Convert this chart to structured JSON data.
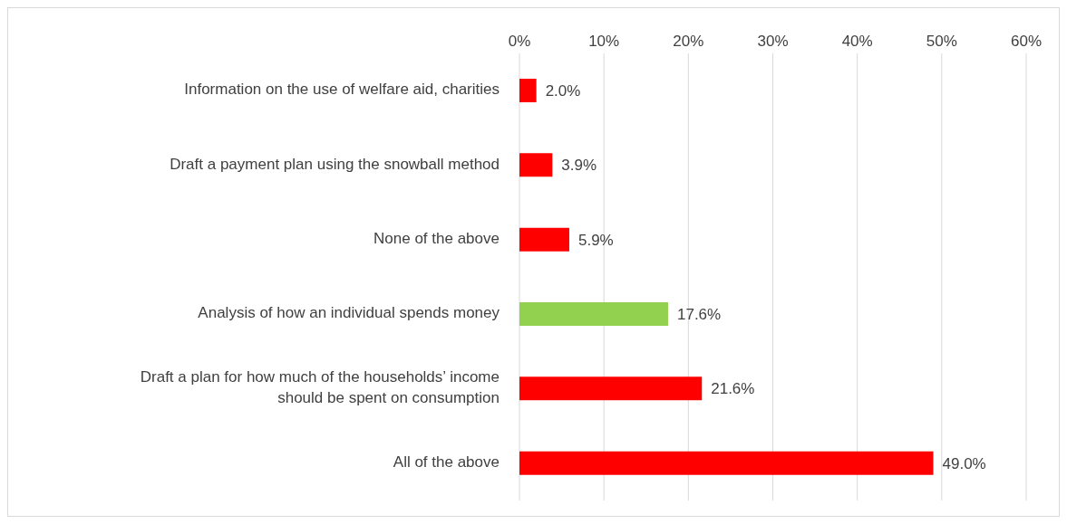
{
  "chart_data": {
    "type": "bar",
    "orientation": "horizontal",
    "categories": [
      "Information on the use of welfare aid, charities",
      "Draft a payment plan using the snowball method",
      "None of the above",
      "Analysis of how an individual spends money",
      "Draft a plan for how much of the households’ income should be spent on consumption",
      "All of the above"
    ],
    "values": [
      2.0,
      3.9,
      5.9,
      17.6,
      21.6,
      49.0
    ],
    "colors": [
      "#ff0000",
      "#ff0000",
      "#ff0000",
      "#92d050",
      "#ff0000",
      "#ff0000"
    ],
    "value_labels": [
      "2.0%",
      "3.9%",
      "5.9%",
      "17.6%",
      "21.6%",
      "49.0%"
    ],
    "xlim": [
      0,
      60
    ],
    "xticks": [
      {
        "value": 0,
        "label": "0%"
      },
      {
        "value": 10,
        "label": "10%"
      },
      {
        "value": 20,
        "label": "20%"
      },
      {
        "value": 30,
        "label": "30%"
      },
      {
        "value": 40,
        "label": "40%"
      },
      {
        "value": 50,
        "label": "50%"
      },
      {
        "value": 60,
        "label": "60%"
      }
    ],
    "grid": "x"
  }
}
